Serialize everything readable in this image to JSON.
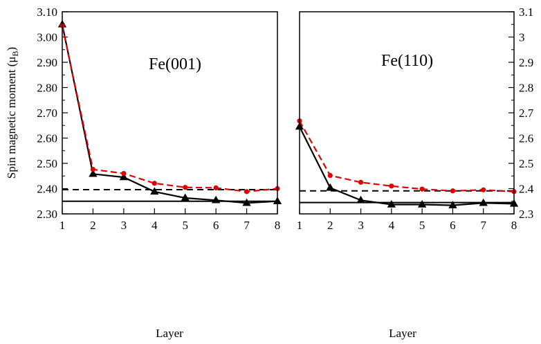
{
  "chart_data": [
    {
      "type": "line",
      "title": "Fe(001)",
      "xlabel": "Layer",
      "ylabel": "Spin magnetic moment (μB)",
      "xlim": [
        1,
        8
      ],
      "ylim": [
        2.3,
        3.1
      ],
      "x_ticks": [
        "1",
        "2",
        "3",
        "4",
        "5",
        "6",
        "7",
        "8"
      ],
      "y_ticks": [
        "2.30",
        "2.40",
        "2.50",
        "2.60",
        "2.70",
        "2.80",
        "2.90",
        "3.00",
        "3.10"
      ],
      "y_tick_values": [
        2.3,
        2.4,
        2.5,
        2.6,
        2.7,
        2.8,
        2.9,
        3.0,
        3.1
      ],
      "y_axis_side": "left",
      "series": [
        {
          "style": "black solid, triangle markers",
          "color": "#000000",
          "x": [
            1,
            2,
            3,
            4,
            5,
            6,
            7,
            8
          ],
          "y": [
            3.05,
            2.458,
            2.445,
            2.388,
            2.363,
            2.354,
            2.343,
            2.35
          ]
        },
        {
          "style": "red dashed, circle markers",
          "color": "#e00000",
          "x": [
            1,
            2,
            3,
            4,
            5,
            6,
            7,
            8
          ],
          "y": [
            3.045,
            2.476,
            2.46,
            2.421,
            2.405,
            2.403,
            2.388,
            2.4
          ]
        }
      ],
      "hlines": [
        {
          "y": 2.396,
          "style": "dashed",
          "color": "#000000"
        },
        {
          "y": 2.35,
          "style": "solid",
          "color": "#000000"
        }
      ]
    },
    {
      "type": "line",
      "title": "Fe(110)",
      "xlabel": "Layer",
      "ylabel": "",
      "xlim": [
        1,
        8
      ],
      "ylim": [
        2.3,
        3.1
      ],
      "x_ticks": [
        "1",
        "2",
        "3",
        "4",
        "5",
        "6",
        "7",
        "8"
      ],
      "y_ticks": [
        "2.3",
        "2.4",
        "2.5",
        "2.6",
        "2.7",
        "2.8",
        "2.9",
        "3",
        "3.1"
      ],
      "y_tick_values": [
        2.3,
        2.4,
        2.5,
        2.6,
        2.7,
        2.8,
        2.9,
        3.0,
        3.1
      ],
      "y_axis_side": "right",
      "series": [
        {
          "style": "black solid, triangle markers",
          "color": "#000000",
          "x": [
            1,
            2,
            3,
            4,
            5,
            6,
            7,
            8
          ],
          "y": [
            2.645,
            2.403,
            2.354,
            2.337,
            2.337,
            2.334,
            2.343,
            2.34
          ]
        },
        {
          "style": "red dashed, circle markers",
          "color": "#e00000",
          "x": [
            1,
            2,
            3,
            4,
            5,
            6,
            7,
            8
          ],
          "y": [
            2.668,
            2.452,
            2.425,
            2.41,
            2.398,
            2.391,
            2.395,
            2.388
          ]
        }
      ],
      "hlines": [
        {
          "y": 2.391,
          "style": "dashed",
          "color": "#000000"
        },
        {
          "y": 2.345,
          "style": "solid",
          "color": "#000000"
        }
      ]
    }
  ]
}
